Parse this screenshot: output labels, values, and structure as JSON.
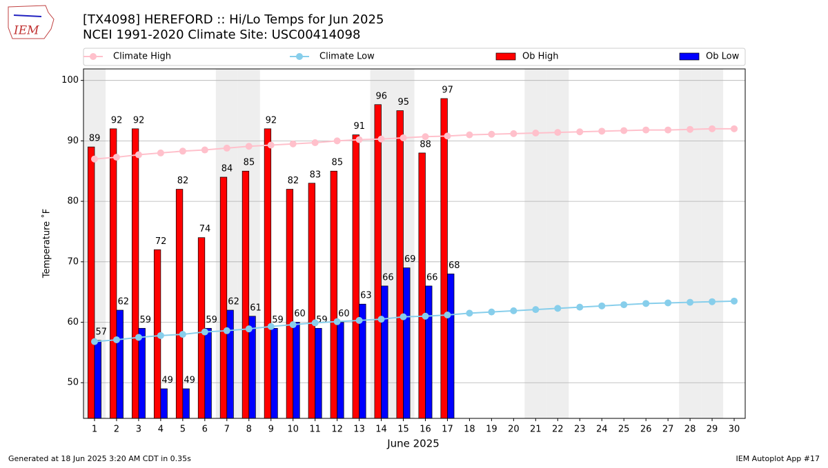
{
  "chart_data": {
    "type": "bar",
    "logo_text": "IEM",
    "title": "[TX4098] HEREFORD :: Hi/Lo Temps for Jun 2025",
    "subtitle": "NCEI 1991-2020 Climate Site: USC00414098",
    "xlabel": "June 2025",
    "ylabel": "Temperature ˚F",
    "footer_left": "Generated at 18 Jun 2025 3:20 AM CDT in 0.35s",
    "footer_right": "IEM Autoplot App #17",
    "x": [
      1,
      2,
      3,
      4,
      5,
      6,
      7,
      8,
      9,
      10,
      11,
      12,
      13,
      14,
      15,
      16,
      17,
      18,
      19,
      20,
      21,
      22,
      23,
      24,
      25,
      26,
      27,
      28,
      29,
      30
    ],
    "xlim": [
      0.5,
      30.5
    ],
    "ylim": [
      44.1,
      101.9
    ],
    "yticks": [
      50,
      60,
      70,
      80,
      90,
      100
    ],
    "grid": true,
    "shaded_days": [
      1,
      7,
      8,
      14,
      15,
      21,
      22,
      28,
      29
    ],
    "series": [
      {
        "name": "Climate High",
        "style": "line",
        "color": "#ffc0cb",
        "values": [
          87.0,
          87.3,
          87.7,
          88.0,
          88.3,
          88.5,
          88.8,
          89.1,
          89.3,
          89.5,
          89.7,
          90.0,
          90.2,
          90.3,
          90.5,
          90.7,
          90.8,
          91.0,
          91.1,
          91.2,
          91.3,
          91.4,
          91.5,
          91.6,
          91.7,
          91.8,
          91.8,
          91.9,
          92.0,
          92.0
        ]
      },
      {
        "name": "Climate Low",
        "style": "line",
        "color": "#87ceeb",
        "values": [
          56.8,
          57.1,
          57.5,
          57.8,
          58.0,
          58.4,
          58.6,
          58.9,
          59.3,
          59.6,
          59.9,
          60.1,
          60.3,
          60.5,
          60.9,
          61.0,
          61.2,
          61.5,
          61.7,
          61.9,
          62.1,
          62.3,
          62.5,
          62.7,
          62.9,
          63.1,
          63.2,
          63.3,
          63.4,
          63.5
        ]
      },
      {
        "name": "Ob High",
        "style": "bar",
        "color": "#ff0000",
        "values": [
          89,
          92,
          92,
          72,
          82,
          74,
          84,
          85,
          92,
          82,
          83,
          85,
          91,
          96,
          95,
          88,
          97,
          null,
          null,
          null,
          null,
          null,
          null,
          null,
          null,
          null,
          null,
          null,
          null,
          null
        ]
      },
      {
        "name": "Ob Low",
        "style": "bar",
        "color": "#0000ff",
        "values": [
          57,
          62,
          59,
          49,
          49,
          59,
          62,
          61,
          59,
          60,
          59,
          60,
          63,
          66,
          69,
          66,
          68,
          null,
          null,
          null,
          null,
          null,
          null,
          null,
          null,
          null,
          null,
          null,
          null,
          null
        ]
      }
    ]
  }
}
